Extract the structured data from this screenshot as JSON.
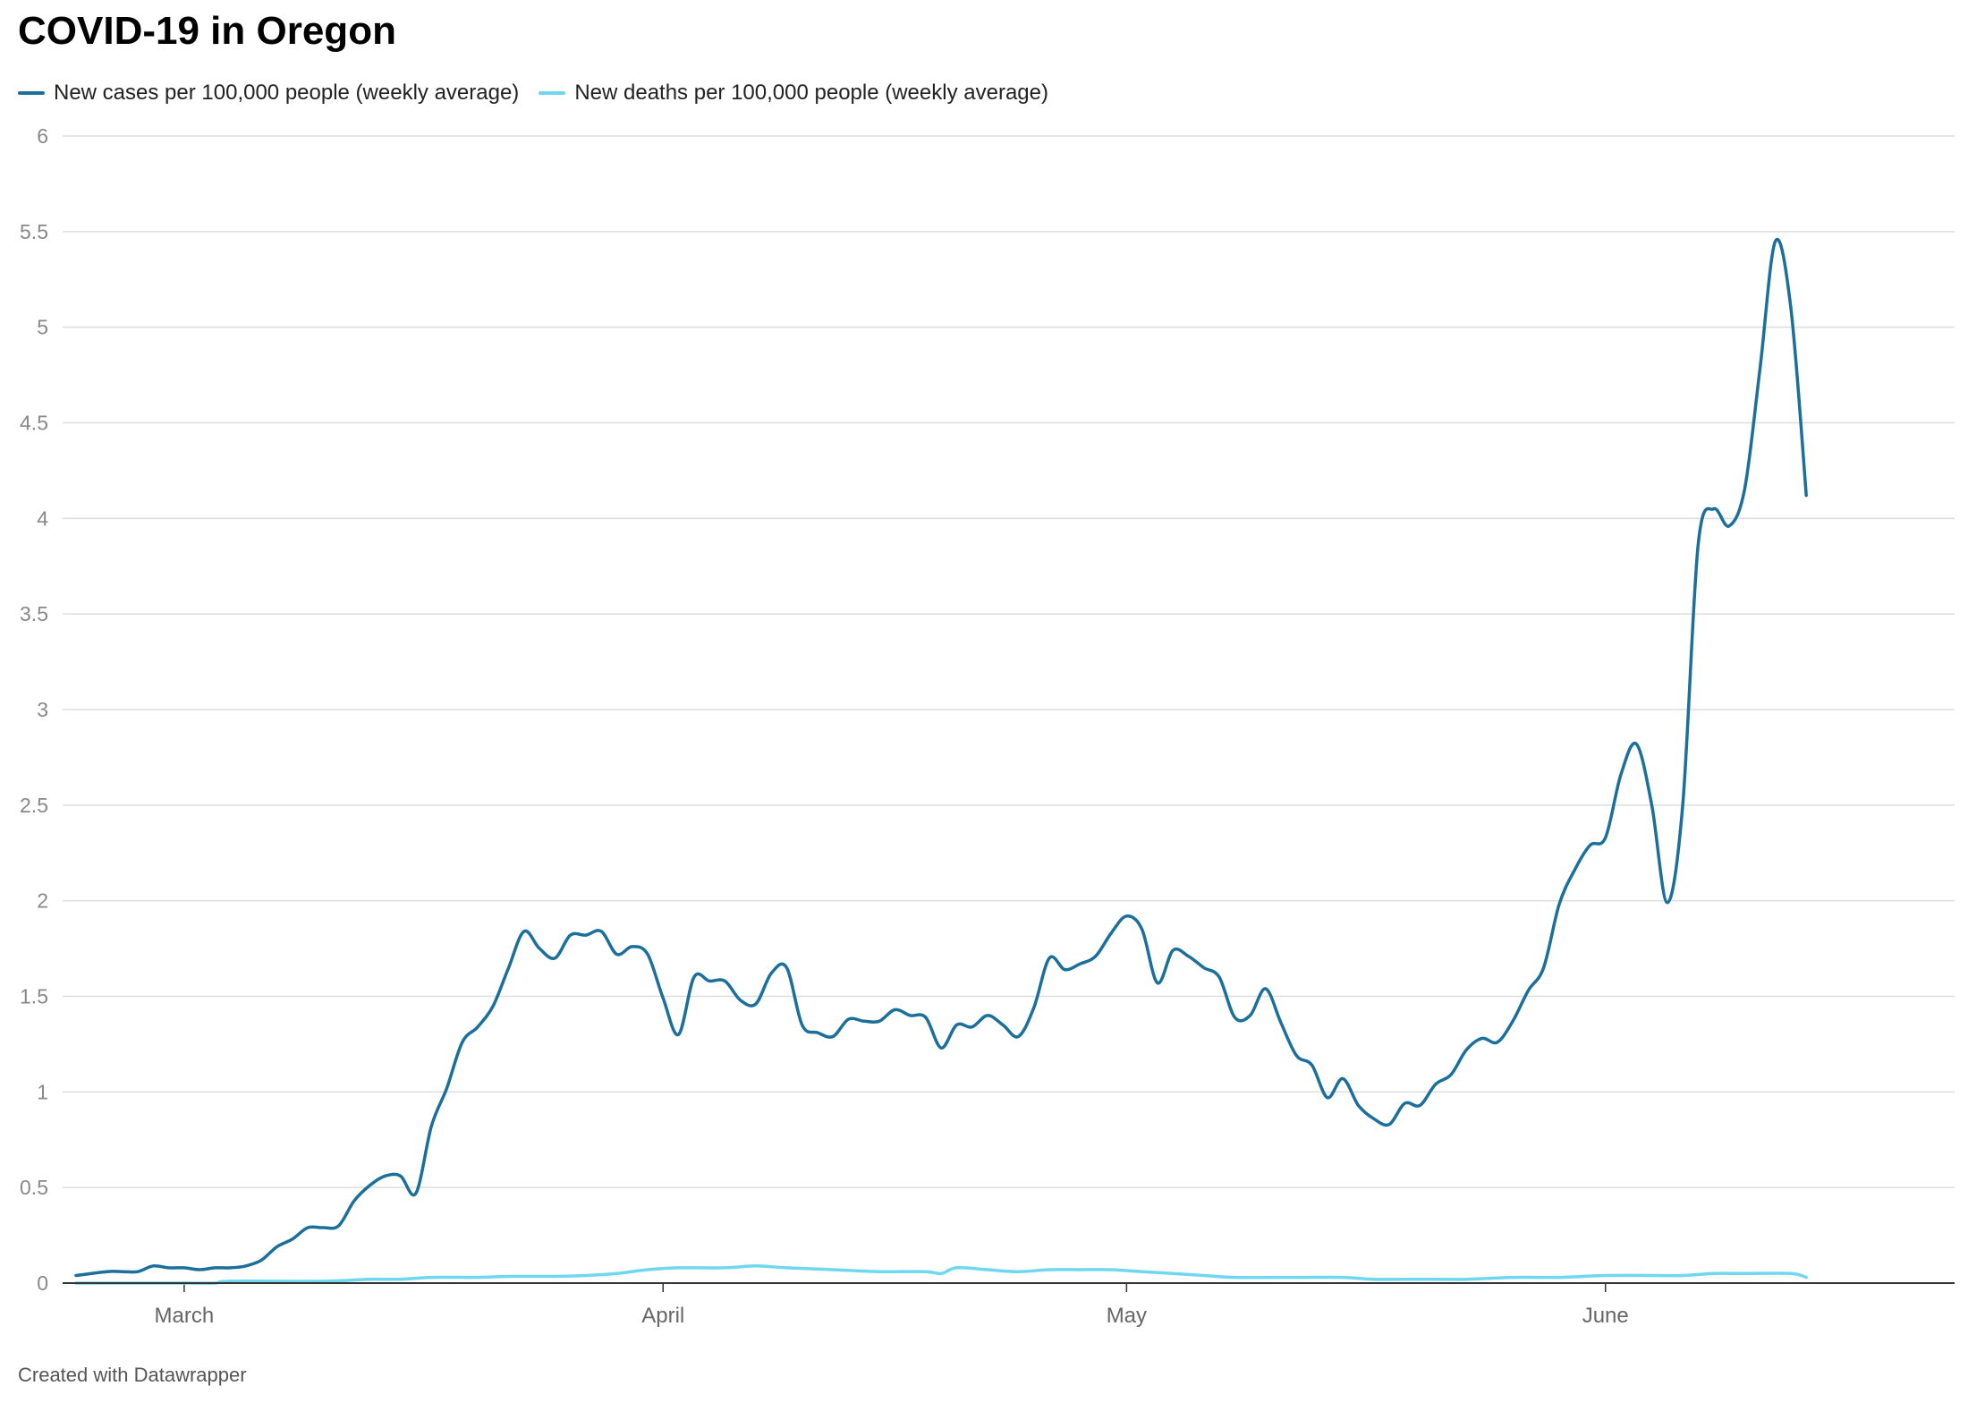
{
  "chart_data": {
    "type": "line",
    "title": "COVID-19 in Oregon",
    "xlabel": "",
    "ylabel": "",
    "ylim": [
      0,
      6
    ],
    "y_ticks": [
      "0",
      "0.5",
      "1",
      "1.5",
      "2",
      "2.5",
      "3",
      "3.5",
      "4",
      "4.5",
      "5",
      "5.5",
      "6"
    ],
    "x_ticks": [
      {
        "label": "March",
        "date": "2020-03-01"
      },
      {
        "label": "April",
        "date": "2020-04-01"
      },
      {
        "label": "May",
        "date": "2020-05-01"
      },
      {
        "label": "June",
        "date": "2020-06-01"
      }
    ],
    "grid": true,
    "legend_position": "top-left",
    "series": [
      {
        "name": "New cases per 100,000 people (weekly average)",
        "color": "#1a6f9b",
        "points": [
          [
            "2020-02-23",
            0.04
          ],
          [
            "2020-02-25",
            0.06
          ],
          [
            "2020-02-26",
            0.06
          ],
          [
            "2020-02-27",
            0.06
          ],
          [
            "2020-02-28",
            0.09
          ],
          [
            "2020-02-29",
            0.08
          ],
          [
            "2020-03-01",
            0.08
          ],
          [
            "2020-03-02",
            0.07
          ],
          [
            "2020-03-03",
            0.08
          ],
          [
            "2020-03-04",
            0.08
          ],
          [
            "2020-03-05",
            0.09
          ],
          [
            "2020-03-06",
            0.12
          ],
          [
            "2020-03-07",
            0.19
          ],
          [
            "2020-03-08",
            0.23
          ],
          [
            "2020-03-09",
            0.29
          ],
          [
            "2020-03-10",
            0.29
          ],
          [
            "2020-03-11",
            0.3
          ],
          [
            "2020-03-12",
            0.43
          ],
          [
            "2020-03-13",
            0.51
          ],
          [
            "2020-03-14",
            0.56
          ],
          [
            "2020-03-15",
            0.56
          ],
          [
            "2020-03-16",
            0.47
          ],
          [
            "2020-03-17",
            0.82
          ],
          [
            "2020-03-18",
            1.02
          ],
          [
            "2020-03-19",
            1.26
          ],
          [
            "2020-03-20",
            1.34
          ],
          [
            "2020-03-21",
            1.45
          ],
          [
            "2020-03-22",
            1.65
          ],
          [
            "2020-03-23",
            1.84
          ],
          [
            "2020-03-24",
            1.75
          ],
          [
            "2020-03-25",
            1.7
          ],
          [
            "2020-03-26",
            1.82
          ],
          [
            "2020-03-27",
            1.82
          ],
          [
            "2020-03-28",
            1.84
          ],
          [
            "2020-03-29",
            1.72
          ],
          [
            "2020-03-30",
            1.76
          ],
          [
            "2020-03-31",
            1.72
          ],
          [
            "2020-04-01",
            1.49
          ],
          [
            "2020-04-02",
            1.3
          ],
          [
            "2020-04-03",
            1.6
          ],
          [
            "2020-04-04",
            1.58
          ],
          [
            "2020-04-05",
            1.58
          ],
          [
            "2020-04-06",
            1.48
          ],
          [
            "2020-04-07",
            1.46
          ],
          [
            "2020-04-08",
            1.62
          ],
          [
            "2020-04-09",
            1.65
          ],
          [
            "2020-04-10",
            1.35
          ],
          [
            "2020-04-11",
            1.31
          ],
          [
            "2020-04-12",
            1.29
          ],
          [
            "2020-04-13",
            1.38
          ],
          [
            "2020-04-14",
            1.37
          ],
          [
            "2020-04-15",
            1.37
          ],
          [
            "2020-04-16",
            1.43
          ],
          [
            "2020-04-17",
            1.4
          ],
          [
            "2020-04-18",
            1.39
          ],
          [
            "2020-04-19",
            1.23
          ],
          [
            "2020-04-20",
            1.35
          ],
          [
            "2020-04-21",
            1.34
          ],
          [
            "2020-04-22",
            1.4
          ],
          [
            "2020-04-23",
            1.35
          ],
          [
            "2020-04-24",
            1.29
          ],
          [
            "2020-04-25",
            1.44
          ],
          [
            "2020-04-26",
            1.7
          ],
          [
            "2020-04-27",
            1.64
          ],
          [
            "2020-04-28",
            1.67
          ],
          [
            "2020-04-29",
            1.71
          ],
          [
            "2020-04-30",
            1.83
          ],
          [
            "2020-05-01",
            1.92
          ],
          [
            "2020-05-02",
            1.85
          ],
          [
            "2020-05-03",
            1.57
          ],
          [
            "2020-05-04",
            1.74
          ],
          [
            "2020-05-05",
            1.71
          ],
          [
            "2020-05-06",
            1.65
          ],
          [
            "2020-05-07",
            1.6
          ],
          [
            "2020-05-08",
            1.39
          ],
          [
            "2020-05-09",
            1.4
          ],
          [
            "2020-05-10",
            1.54
          ],
          [
            "2020-05-11",
            1.36
          ],
          [
            "2020-05-12",
            1.19
          ],
          [
            "2020-05-13",
            1.14
          ],
          [
            "2020-05-14",
            0.97
          ],
          [
            "2020-05-15",
            1.07
          ],
          [
            "2020-05-16",
            0.93
          ],
          [
            "2020-05-17",
            0.86
          ],
          [
            "2020-05-18",
            0.83
          ],
          [
            "2020-05-19",
            0.94
          ],
          [
            "2020-05-20",
            0.93
          ],
          [
            "2020-05-21",
            1.04
          ],
          [
            "2020-05-22",
            1.09
          ],
          [
            "2020-05-23",
            1.22
          ],
          [
            "2020-05-24",
            1.28
          ],
          [
            "2020-05-25",
            1.26
          ],
          [
            "2020-05-26",
            1.37
          ],
          [
            "2020-05-27",
            1.53
          ],
          [
            "2020-05-28",
            1.65
          ],
          [
            "2020-05-29",
            1.98
          ],
          [
            "2020-05-30",
            2.16
          ],
          [
            "2020-05-31",
            2.29
          ],
          [
            "2020-06-01",
            2.33
          ],
          [
            "2020-06-02",
            2.66
          ],
          [
            "2020-06-03",
            2.82
          ],
          [
            "2020-06-04",
            2.5
          ],
          [
            "2020-06-05",
            1.99
          ],
          [
            "2020-06-06",
            2.5
          ],
          [
            "2020-06-07",
            3.86
          ],
          [
            "2020-06-08",
            4.05
          ],
          [
            "2020-06-09",
            3.96
          ],
          [
            "2020-06-10",
            4.15
          ],
          [
            "2020-06-11",
            4.78
          ],
          [
            "2020-06-12",
            5.45
          ],
          [
            "2020-06-13",
            5.1
          ],
          [
            "2020-06-14",
            4.12
          ]
        ]
      },
      {
        "name": "New deaths per 100,000 people (weekly average)",
        "color": "#6fd8f0",
        "points": [
          [
            "2020-02-23",
            0.0
          ],
          [
            "2020-03-01",
            0.0
          ],
          [
            "2020-03-03",
            0.0
          ],
          [
            "2020-03-04",
            0.01
          ],
          [
            "2020-03-10",
            0.01
          ],
          [
            "2020-03-13",
            0.02
          ],
          [
            "2020-03-15",
            0.02
          ],
          [
            "2020-03-17",
            0.03
          ],
          [
            "2020-03-20",
            0.03
          ],
          [
            "2020-03-22",
            0.035
          ],
          [
            "2020-03-25",
            0.035
          ],
          [
            "2020-03-27",
            0.04
          ],
          [
            "2020-03-29",
            0.05
          ],
          [
            "2020-03-31",
            0.07
          ],
          [
            "2020-04-02",
            0.08
          ],
          [
            "2020-04-05",
            0.08
          ],
          [
            "2020-04-07",
            0.09
          ],
          [
            "2020-04-09",
            0.08
          ],
          [
            "2020-04-12",
            0.07
          ],
          [
            "2020-04-15",
            0.06
          ],
          [
            "2020-04-18",
            0.06
          ],
          [
            "2020-04-19",
            0.05
          ],
          [
            "2020-04-20",
            0.08
          ],
          [
            "2020-04-22",
            0.07
          ],
          [
            "2020-04-24",
            0.06
          ],
          [
            "2020-04-26",
            0.07
          ],
          [
            "2020-04-28",
            0.07
          ],
          [
            "2020-04-30",
            0.07
          ],
          [
            "2020-05-02",
            0.06
          ],
          [
            "2020-05-04",
            0.05
          ],
          [
            "2020-05-06",
            0.04
          ],
          [
            "2020-05-08",
            0.03
          ],
          [
            "2020-05-12",
            0.03
          ],
          [
            "2020-05-15",
            0.03
          ],
          [
            "2020-05-17",
            0.02
          ],
          [
            "2020-05-20",
            0.02
          ],
          [
            "2020-05-23",
            0.02
          ],
          [
            "2020-05-26",
            0.03
          ],
          [
            "2020-05-29",
            0.03
          ],
          [
            "2020-06-01",
            0.04
          ],
          [
            "2020-06-04",
            0.04
          ],
          [
            "2020-06-06",
            0.04
          ],
          [
            "2020-06-08",
            0.05
          ],
          [
            "2020-06-10",
            0.05
          ],
          [
            "2020-06-13",
            0.05
          ],
          [
            "2020-06-14",
            0.03
          ]
        ]
      }
    ],
    "footer": "Created with Datawrapper"
  }
}
